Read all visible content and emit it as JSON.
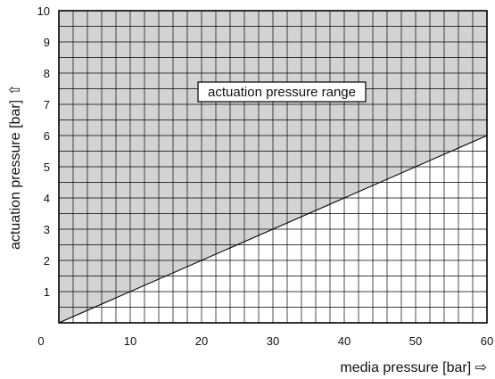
{
  "chart_data": {
    "type": "area",
    "xlabel": "media pressure [bar] ⇨",
    "ylabel": "actuation pressure [bar] ⇧",
    "xlim": [
      0,
      60
    ],
    "ylim": [
      0,
      10
    ],
    "x_ticks": [
      0,
      10,
      20,
      30,
      40,
      50,
      60
    ],
    "y_ticks": [
      1,
      2,
      3,
      4,
      5,
      6,
      7,
      8,
      9,
      10
    ],
    "grid": true,
    "minor_grid_x_step": 2,
    "minor_grid_y_step": 0.5,
    "boundary_line": {
      "x": [
        0,
        60
      ],
      "y": [
        0,
        6
      ]
    },
    "shaded_region": "above-line",
    "colors": {
      "shade": "#d3d3d3",
      "grid": "#000000",
      "background": "#ffffff"
    },
    "annotation": {
      "text": "actuation pressure range",
      "x": 30,
      "y": 7.4
    }
  }
}
